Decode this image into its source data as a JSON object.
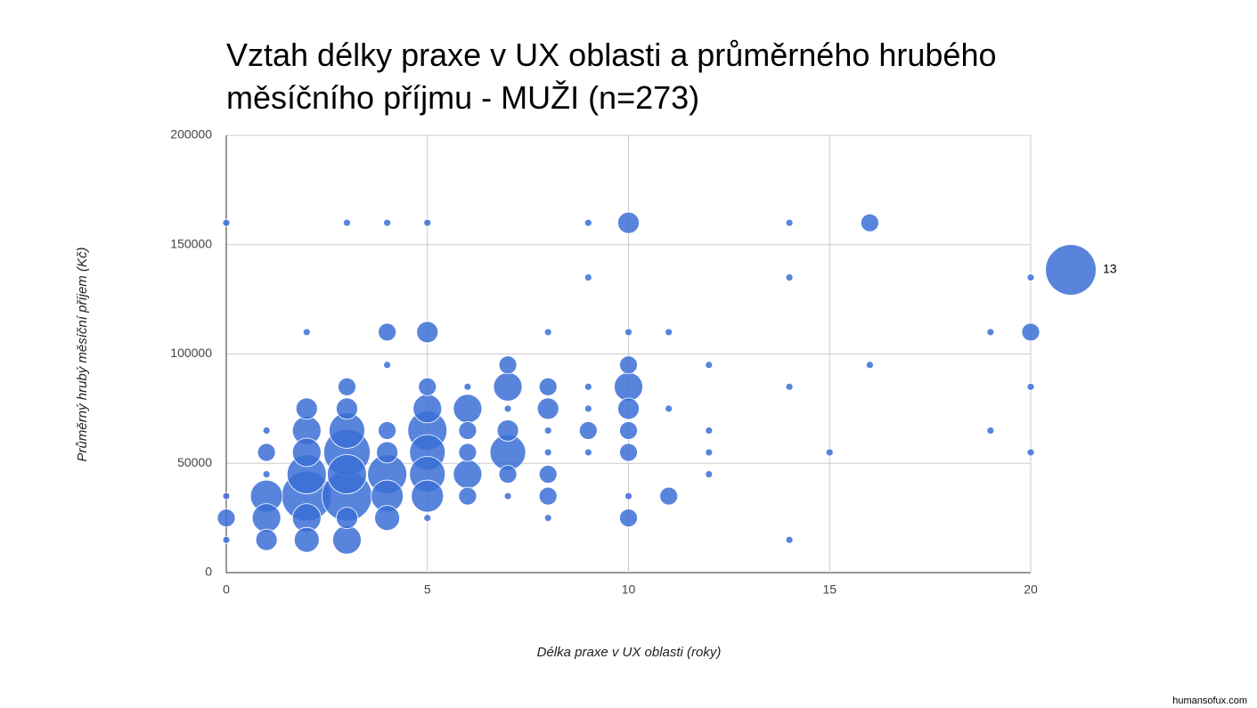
{
  "chart_data": {
    "type": "bubble",
    "title": [
      "Vztah délky praxe v UX oblasti a průměrného hrubého",
      "měsíčního příjmu - MUŽI (n=273)"
    ],
    "x_label": "Délka praxe v UX oblasti (roky)",
    "y_label": "Průměrný hrubý měsíční příjem (Kč)",
    "xlim": [
      0,
      20
    ],
    "xticks": [
      0,
      5,
      10,
      15,
      20
    ],
    "ylim": [
      0,
      200000
    ],
    "yticks": [
      0,
      50000,
      100000,
      150000,
      200000
    ],
    "grid": true,
    "size_legend": 13,
    "footer": "humansofux.com",
    "series": [
      {
        "color": "#3b6fd6",
        "x": [
          0,
          0,
          0,
          0,
          1,
          1,
          1,
          1,
          1,
          1,
          2,
          2,
          2,
          2,
          2,
          2,
          2,
          2,
          3,
          3,
          3,
          3,
          3,
          3,
          3,
          3,
          3,
          4,
          4,
          4,
          4,
          4,
          4,
          4,
          4,
          5,
          5,
          5,
          5,
          5,
          5,
          5,
          5,
          5,
          6,
          6,
          6,
          6,
          6,
          6,
          7,
          7,
          7,
          7,
          7,
          7,
          7,
          8,
          8,
          8,
          8,
          8,
          8,
          8,
          8,
          9,
          9,
          9,
          9,
          9,
          9,
          10,
          10,
          10,
          10,
          10,
          10,
          10,
          10,
          10,
          11,
          11,
          11,
          12,
          12,
          12,
          12,
          14,
          14,
          14,
          14,
          15,
          16,
          16,
          19,
          19,
          20,
          20,
          20,
          20
        ],
        "values": [
          160000,
          35000,
          25000,
          15000,
          65000,
          55000,
          45000,
          35000,
          25000,
          15000,
          110000,
          75000,
          65000,
          55000,
          45000,
          35000,
          25000,
          15000,
          160000,
          85000,
          75000,
          65000,
          55000,
          45000,
          35000,
          25000,
          15000,
          160000,
          110000,
          95000,
          65000,
          55000,
          45000,
          35000,
          25000,
          160000,
          110000,
          85000,
          75000,
          65000,
          55000,
          45000,
          35000,
          25000,
          85000,
          75000,
          65000,
          55000,
          45000,
          35000,
          95000,
          85000,
          75000,
          65000,
          55000,
          45000,
          35000,
          110000,
          85000,
          75000,
          65000,
          55000,
          45000,
          35000,
          25000,
          160000,
          135000,
          85000,
          75000,
          65000,
          55000,
          160000,
          110000,
          95000,
          85000,
          75000,
          65000,
          55000,
          35000,
          25000,
          110000,
          75000,
          35000,
          95000,
          65000,
          55000,
          45000,
          160000,
          135000,
          85000,
          15000,
          55000,
          160000,
          95000,
          110000,
          65000,
          135000,
          110000,
          85000,
          55000
        ],
        "sizes": [
          1,
          1,
          4,
          1,
          1,
          4,
          1,
          8,
          7,
          5,
          1,
          5,
          7,
          7,
          10,
          13,
          7,
          6,
          1,
          4,
          5,
          9,
          12,
          10,
          13,
          5,
          7,
          1,
          4,
          1,
          4,
          5,
          10,
          8,
          6,
          1,
          5,
          4,
          7,
          10,
          9,
          9,
          8,
          1,
          1,
          7,
          4,
          4,
          7,
          4,
          4,
          7,
          1,
          5,
          9,
          4,
          1,
          1,
          4,
          5,
          1,
          1,
          4,
          4,
          1,
          1,
          1,
          1,
          1,
          4,
          1,
          5,
          1,
          4,
          7,
          5,
          4,
          4,
          1,
          4,
          1,
          1,
          4,
          1,
          1,
          1,
          1,
          1,
          1,
          1,
          1,
          1,
          4,
          1,
          1,
          1,
          1,
          4,
          1,
          1
        ]
      }
    ]
  }
}
